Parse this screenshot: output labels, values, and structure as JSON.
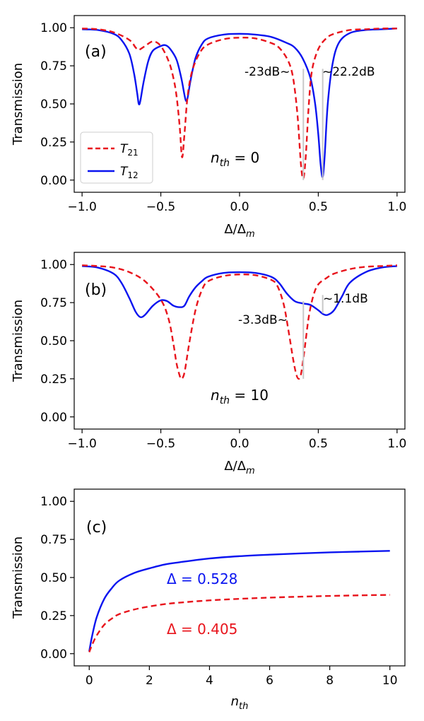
{
  "chart_data": [
    {
      "type": "line",
      "panel_label": "(a)",
      "xlabel": "Δ/Δ_m",
      "ylabel": "Transmission",
      "xlim": [
        -1.05,
        1.05
      ],
      "ylim": [
        -0.08,
        1.08
      ],
      "xticks": [
        -1.0,
        -0.5,
        0.0,
        0.5,
        1.0
      ],
      "xtick_labels": [
        "−1.0",
        "−0.5",
        "0.0",
        "0.5",
        "1.0"
      ],
      "yticks": [
        0.0,
        0.25,
        0.5,
        0.75,
        1.0
      ],
      "ytick_labels": [
        "0.00",
        "0.25",
        "0.50",
        "0.75",
        "1.00"
      ],
      "annotation_text": "n_th = 0",
      "annotations": [
        {
          "text": "-23dB~",
          "x": 0.27,
          "y": 0.71,
          "anchor": "middle"
        },
        {
          "text": "~22.2dB",
          "x": 0.74,
          "y": 0.71,
          "anchor": "middle"
        }
      ],
      "vlines": [
        {
          "x": 0.405,
          "y0": 0.0,
          "y1": 0.73
        },
        {
          "x": 0.528,
          "y0": 0.0,
          "y1": 0.73
        }
      ],
      "legend": [
        {
          "label": "T_21",
          "color": "#e8141c",
          "dash": true
        },
        {
          "label": "T_12",
          "color": "#0a14f0",
          "dash": false
        }
      ],
      "series": [
        {
          "name": "T_21",
          "color": "#e8141c",
          "dash": true,
          "x": [
            -1.0,
            -0.9,
            -0.8,
            -0.7,
            -0.66,
            -0.64,
            -0.6,
            -0.55,
            -0.5,
            -0.45,
            -0.42,
            -0.4,
            -0.38,
            -0.365,
            -0.35,
            -0.33,
            -0.3,
            -0.25,
            -0.2,
            -0.1,
            0.0,
            0.1,
            0.2,
            0.25,
            0.3,
            0.33,
            0.35,
            0.37,
            0.39,
            0.405,
            0.42,
            0.44,
            0.46,
            0.5,
            0.55,
            0.6,
            0.7,
            0.8,
            0.9,
            1.0
          ],
          "y": [
            0.995,
            0.99,
            0.97,
            0.92,
            0.87,
            0.855,
            0.88,
            0.91,
            0.88,
            0.78,
            0.67,
            0.55,
            0.35,
            0.15,
            0.3,
            0.55,
            0.72,
            0.84,
            0.89,
            0.925,
            0.935,
            0.93,
            0.9,
            0.87,
            0.8,
            0.72,
            0.6,
            0.4,
            0.1,
            0.01,
            0.15,
            0.5,
            0.72,
            0.86,
            0.93,
            0.96,
            0.985,
            0.99,
            0.995,
            0.995
          ]
        },
        {
          "name": "T_12",
          "color": "#0a14f0",
          "dash": false,
          "x": [
            -1.0,
            -0.9,
            -0.8,
            -0.75,
            -0.7,
            -0.67,
            -0.65,
            -0.64,
            -0.63,
            -0.61,
            -0.58,
            -0.55,
            -0.5,
            -0.47,
            -0.44,
            -0.4,
            -0.37,
            -0.35,
            -0.34,
            -0.33,
            -0.31,
            -0.28,
            -0.24,
            -0.2,
            -0.1,
            0.0,
            0.1,
            0.2,
            0.3,
            0.35,
            0.4,
            0.45,
            0.48,
            0.5,
            0.515,
            0.528,
            0.54,
            0.56,
            0.59,
            0.63,
            0.7,
            0.8,
            0.9,
            1.0
          ],
          "y": [
            0.99,
            0.985,
            0.96,
            0.92,
            0.83,
            0.7,
            0.57,
            0.5,
            0.52,
            0.64,
            0.78,
            0.85,
            0.88,
            0.885,
            0.86,
            0.79,
            0.67,
            0.56,
            0.52,
            0.54,
            0.66,
            0.8,
            0.89,
            0.93,
            0.955,
            0.96,
            0.955,
            0.94,
            0.9,
            0.87,
            0.8,
            0.67,
            0.5,
            0.3,
            0.1,
            0.02,
            0.15,
            0.5,
            0.76,
            0.9,
            0.965,
            0.985,
            0.99,
            0.995
          ]
        }
      ]
    },
    {
      "type": "line",
      "panel_label": "(b)",
      "xlabel": "Δ/Δ_m",
      "ylabel": "Transmission",
      "xlim": [
        -1.05,
        1.05
      ],
      "ylim": [
        -0.08,
        1.08
      ],
      "xticks": [
        -1.0,
        -0.5,
        0.0,
        0.5,
        1.0
      ],
      "xtick_labels": [
        "−1.0",
        "−0.5",
        "0.0",
        "0.5",
        "1.0"
      ],
      "yticks": [
        0.0,
        0.25,
        0.5,
        0.75,
        1.0
      ],
      "ytick_labels": [
        "0.00",
        "0.25",
        "0.50",
        "0.75",
        "1.00"
      ],
      "annotation_text": "n_th = 10",
      "annotations": [
        {
          "text": "-3.3dB~",
          "x": 0.25,
          "y": 0.545,
          "anchor": "middle"
        },
        {
          "text": "~1.1dB",
          "x": 0.72,
          "y": 0.795,
          "anchor": "middle"
        }
      ],
      "vlines": [
        {
          "x": 0.405,
          "y0": 0.25,
          "y1": 0.76
        },
        {
          "x": 0.528,
          "y0": 0.68,
          "y1": 0.8
        }
      ],
      "series": [
        {
          "name": "T_21",
          "color": "#e8141c",
          "dash": true,
          "x": [
            -1.0,
            -0.9,
            -0.8,
            -0.7,
            -0.6,
            -0.5,
            -0.45,
            -0.42,
            -0.4,
            -0.38,
            -0.37,
            -0.35,
            -0.32,
            -0.28,
            -0.24,
            -0.2,
            -0.1,
            0.0,
            0.1,
            0.2,
            0.24,
            0.28,
            0.31,
            0.34,
            0.36,
            0.375,
            0.39,
            0.41,
            0.44,
            0.47,
            0.5,
            0.55,
            0.6,
            0.7,
            0.8,
            0.9,
            1.0
          ],
          "y": [
            0.995,
            0.99,
            0.98,
            0.95,
            0.89,
            0.77,
            0.64,
            0.48,
            0.35,
            0.27,
            0.25,
            0.29,
            0.48,
            0.7,
            0.83,
            0.89,
            0.925,
            0.935,
            0.93,
            0.9,
            0.86,
            0.74,
            0.57,
            0.38,
            0.28,
            0.25,
            0.28,
            0.42,
            0.66,
            0.8,
            0.87,
            0.91,
            0.94,
            0.97,
            0.985,
            0.99,
            0.995
          ]
        },
        {
          "name": "T_12",
          "color": "#0a14f0",
          "dash": true,
          "solid": true,
          "x": [
            -1.0,
            -0.9,
            -0.8,
            -0.75,
            -0.7,
            -0.66,
            -0.63,
            -0.6,
            -0.55,
            -0.5,
            -0.46,
            -0.42,
            -0.38,
            -0.35,
            -0.32,
            -0.28,
            -0.24,
            -0.2,
            -0.1,
            0.0,
            0.1,
            0.2,
            0.25,
            0.3,
            0.35,
            0.4,
            0.45,
            0.5,
            0.53,
            0.56,
            0.6,
            0.65,
            0.7,
            0.8,
            0.9,
            1.0
          ],
          "y": [
            0.99,
            0.98,
            0.94,
            0.88,
            0.78,
            0.69,
            0.655,
            0.67,
            0.73,
            0.765,
            0.76,
            0.73,
            0.72,
            0.73,
            0.79,
            0.85,
            0.89,
            0.92,
            0.945,
            0.95,
            0.945,
            0.92,
            0.88,
            0.81,
            0.76,
            0.745,
            0.735,
            0.7,
            0.675,
            0.67,
            0.7,
            0.79,
            0.88,
            0.95,
            0.98,
            0.99
          ]
        }
      ]
    },
    {
      "type": "line",
      "panel_label": "(c)",
      "xlabel": "n_th",
      "ylabel": "Transmission",
      "xlim": [
        -0.5,
        10.5
      ],
      "ylim": [
        -0.08,
        1.08
      ],
      "xticks": [
        0,
        2,
        4,
        6,
        8,
        10
      ],
      "xtick_labels": [
        "0",
        "2",
        "4",
        "6",
        "8",
        "10"
      ],
      "yticks": [
        0.0,
        0.25,
        0.5,
        0.75,
        1.0
      ],
      "ytick_labels": [
        "0.00",
        "0.25",
        "0.50",
        "0.75",
        "1.00"
      ],
      "annotations": [],
      "series_labels": [
        {
          "text": "Δ = 0.528",
          "color": "#0a14f0",
          "x": 3.5,
          "y": 0.48
        },
        {
          "text": "Δ = 0.405",
          "color": "#e8141c",
          "x": 3.5,
          "y": 0.12
        }
      ],
      "series": [
        {
          "name": "Δ = 0.528",
          "color": "#0a14f0",
          "dash": false,
          "x": [
            0.0,
            0.1,
            0.25,
            0.5,
            0.75,
            1.0,
            1.5,
            2.0,
            2.5,
            3.0,
            4.0,
            5.0,
            6.0,
            7.0,
            8.0,
            9.0,
            10.0
          ],
          "y": [
            0.015,
            0.12,
            0.24,
            0.36,
            0.43,
            0.48,
            0.53,
            0.56,
            0.585,
            0.6,
            0.625,
            0.64,
            0.65,
            0.658,
            0.665,
            0.67,
            0.675
          ]
        },
        {
          "name": "Δ = 0.405",
          "color": "#e8141c",
          "dash": true,
          "x": [
            0.0,
            0.1,
            0.25,
            0.5,
            0.75,
            1.0,
            1.5,
            2.0,
            2.5,
            3.0,
            4.0,
            5.0,
            6.0,
            7.0,
            8.0,
            9.0,
            10.0
          ],
          "y": [
            0.01,
            0.06,
            0.12,
            0.19,
            0.23,
            0.26,
            0.29,
            0.31,
            0.325,
            0.335,
            0.35,
            0.36,
            0.368,
            0.374,
            0.379,
            0.383,
            0.386
          ]
        }
      ]
    }
  ],
  "text": {
    "panel_a": "(a)",
    "panel_b": "(b)",
    "panel_c": "(c)",
    "ylabel": "Transmission",
    "xlabel_delta": "Δ/Δ",
    "xlabel_delta_sub": "m",
    "xlabel_nth": "n",
    "xlabel_nth_sub": "th",
    "nth_a_prefix": "n",
    "nth_a_sub": "th",
    "nth_a_value": " = 0",
    "nth_b_prefix": "n",
    "nth_b_sub": "th",
    "nth_b_value": " = 10",
    "legend_t21": "T",
    "legend_t21_sub": "21",
    "legend_t12": "T",
    "legend_t12_sub": "12",
    "ann_a1": "-23dB~",
    "ann_a2": "~22.2dB",
    "ann_b1": "-3.3dB~",
    "ann_b2": "~1.1dB",
    "lbl_c1": "Δ = 0.528",
    "lbl_c2": "Δ = 0.405"
  }
}
